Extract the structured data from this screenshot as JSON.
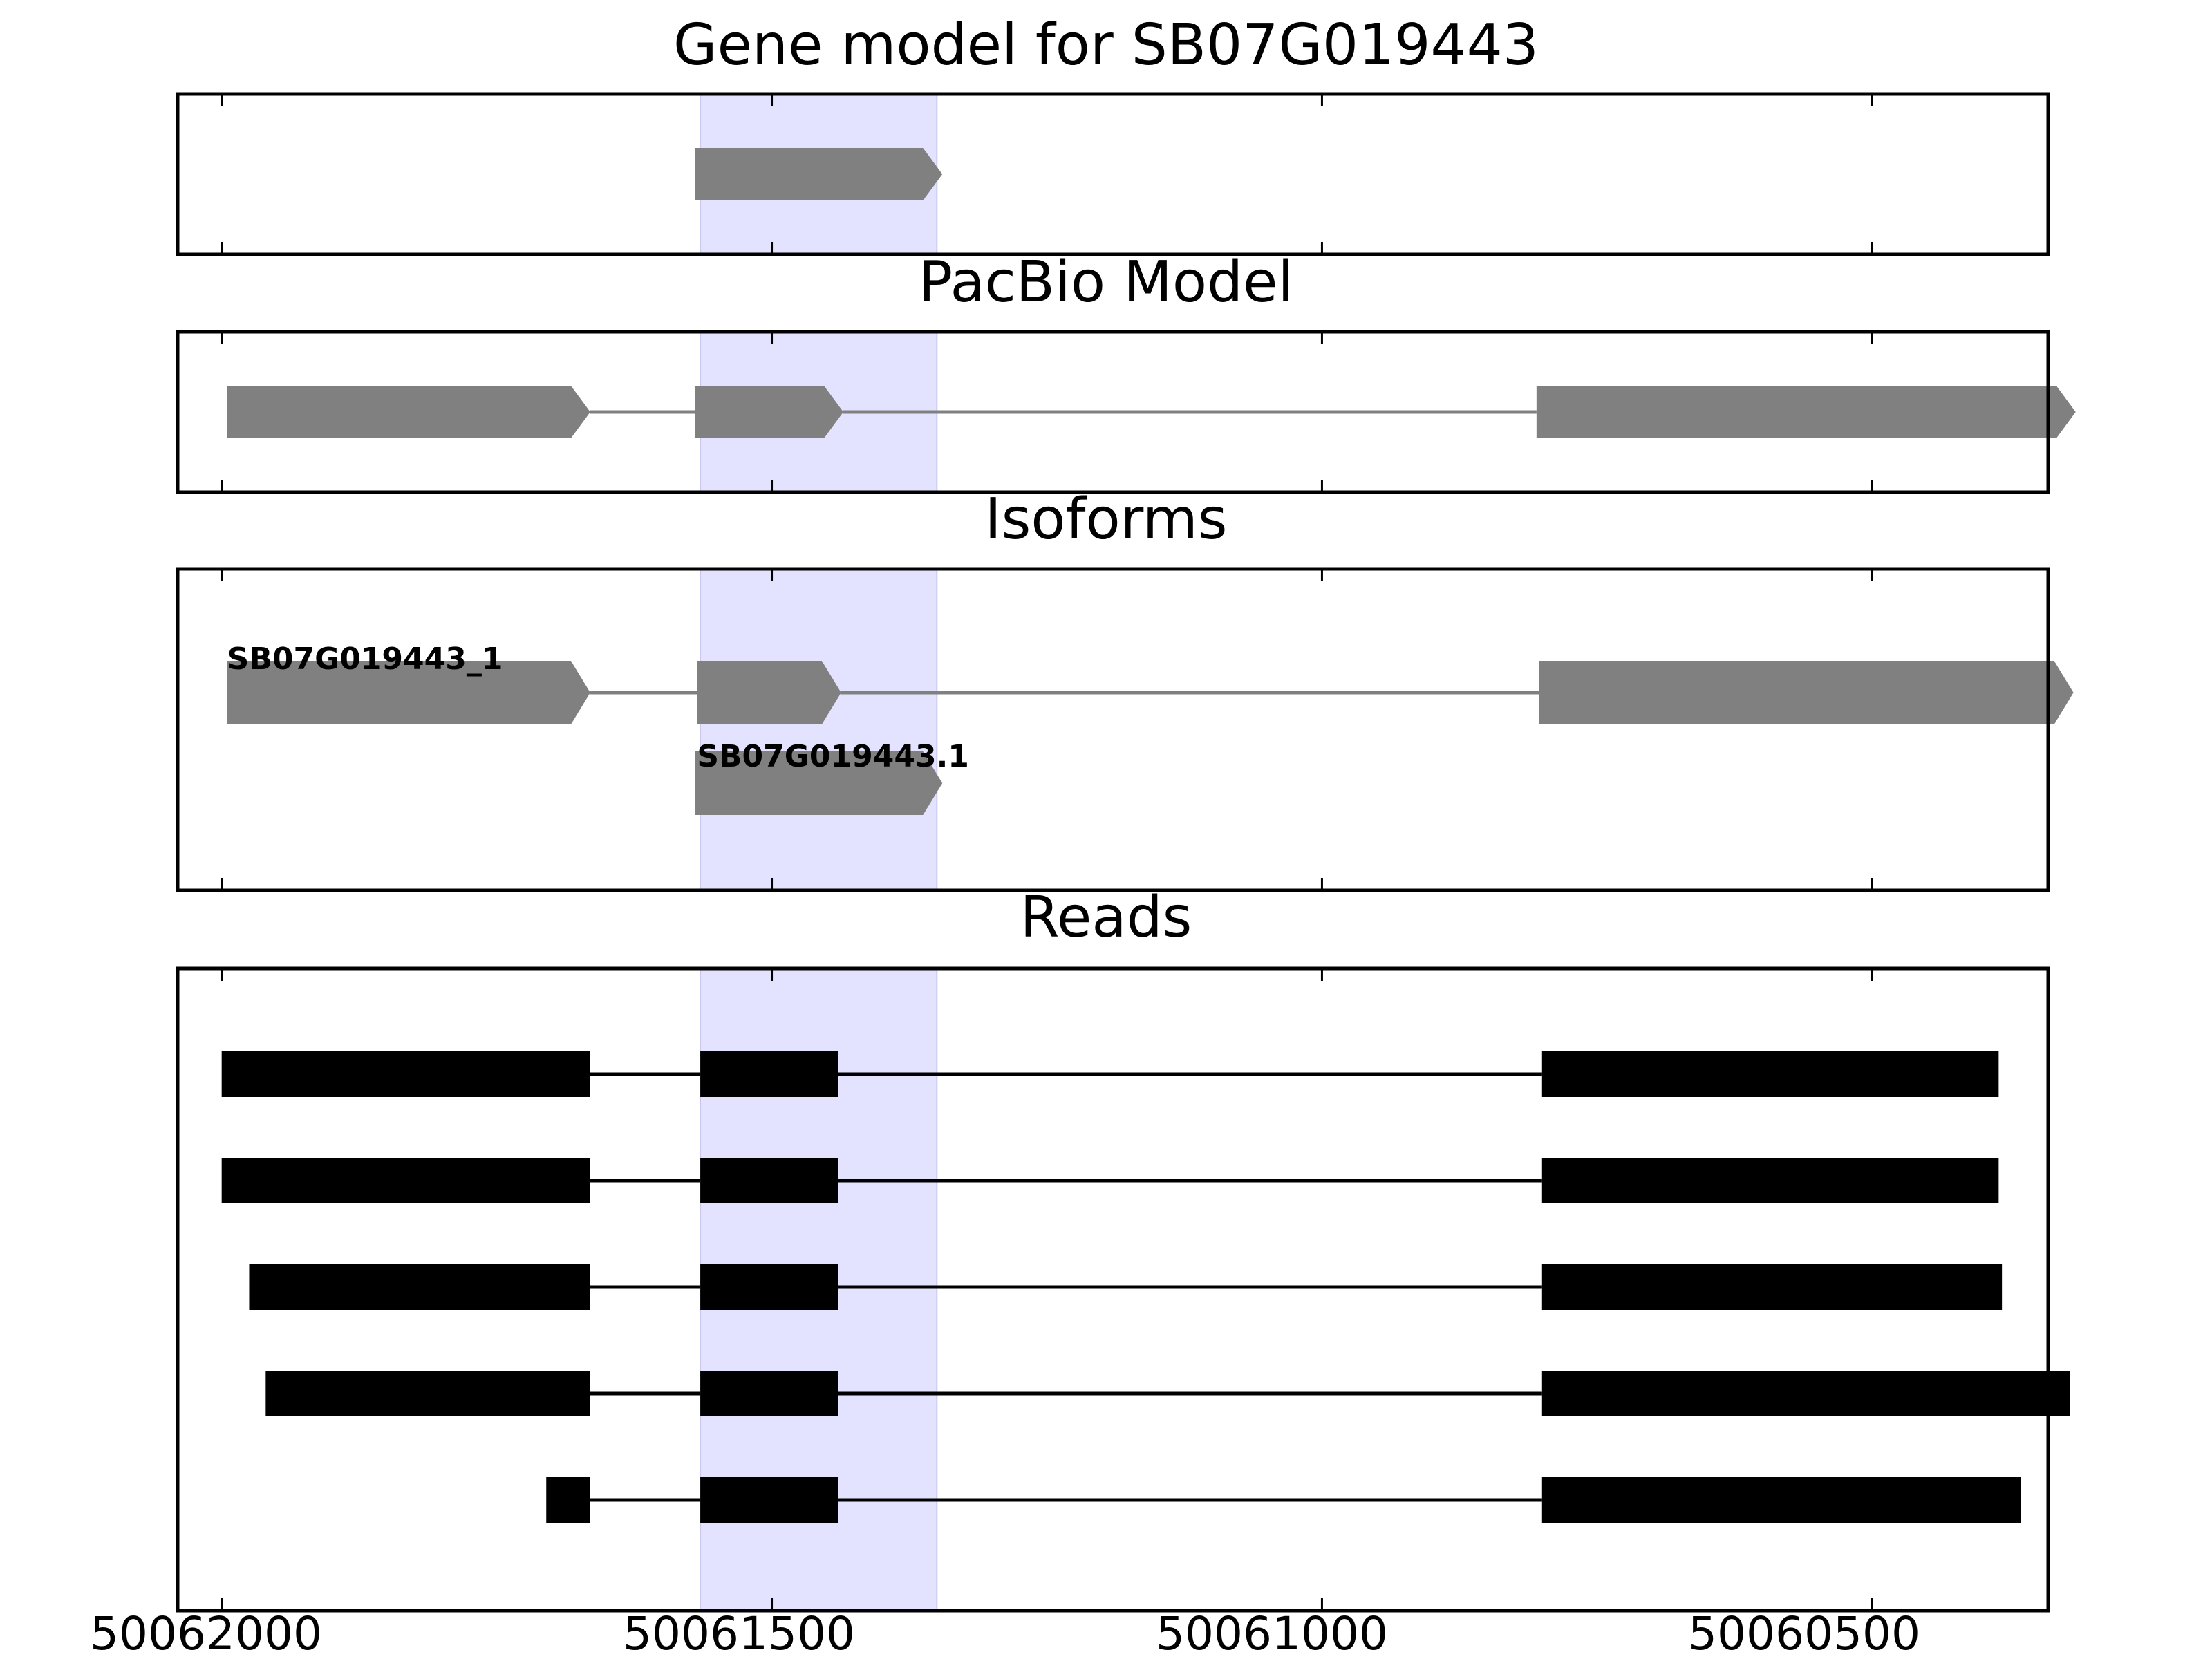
{
  "chart_data": {
    "type": "gene_model_tracks",
    "x_axis": {
      "range": [
        50062040,
        50060340
      ],
      "ticks": [
        50062000,
        50061500,
        50061000,
        50060500
      ],
      "tick_labels": [
        "50062000",
        "50061500",
        "50061000",
        "50060500"
      ],
      "direction": "decreasing"
    },
    "highlight": {
      "start": 50061565,
      "end": 50061350,
      "color": "#e3e3ff"
    },
    "colors": {
      "gene": "#808080",
      "read": "#000000",
      "frame": "#000000"
    },
    "panels": [
      {
        "id": "gene-model",
        "title": "Gene model for SB07G019443",
        "features": [
          {
            "type": "exon",
            "start": 50061570,
            "end": 50061345,
            "arrow": true,
            "row": 0
          }
        ]
      },
      {
        "id": "pacbio-model",
        "title": "PacBio Model",
        "features": [
          {
            "type": "exon",
            "start": 50061995,
            "end": 50061665,
            "arrow": true,
            "row": 0
          },
          {
            "type": "intron",
            "start": 50061665,
            "end": 50061570,
            "row": 0
          },
          {
            "type": "exon",
            "start": 50061570,
            "end": 50061435,
            "arrow": true,
            "row": 0
          },
          {
            "type": "intron",
            "start": 50061435,
            "end": 50060805,
            "row": 0
          },
          {
            "type": "exon",
            "start": 50060805,
            "end": 50060315,
            "arrow": true,
            "row": 0
          }
        ]
      },
      {
        "id": "isoforms",
        "title": "Isoforms",
        "isoforms": [
          {
            "label": "SB07G019443_1",
            "label_x": 50061995,
            "row": 0,
            "features": [
              {
                "type": "exon",
                "start": 50061995,
                "end": 50061665,
                "arrow": true
              },
              {
                "type": "intron",
                "start": 50061665,
                "end": 50061568
              },
              {
                "type": "exon",
                "start": 50061568,
                "end": 50061437,
                "arrow": true
              },
              {
                "type": "intron",
                "start": 50061437,
                "end": 50060803
              },
              {
                "type": "exon",
                "start": 50060803,
                "end": 50060317,
                "arrow": true
              }
            ]
          },
          {
            "label": "SB07G019443.1",
            "label_x": 50061568,
            "row": 1,
            "features": [
              {
                "type": "exon",
                "start": 50061570,
                "end": 50061345,
                "arrow": true
              }
            ]
          }
        ]
      },
      {
        "id": "reads",
        "title": "Reads",
        "reads": [
          {
            "exons": [
              [
                50062000,
                50061665
              ],
              [
                50061565,
                50061440
              ],
              [
                50060800,
                50060385
              ]
            ]
          },
          {
            "exons": [
              [
                50062000,
                50061665
              ],
              [
                50061565,
                50061440
              ],
              [
                50060800,
                50060385
              ]
            ]
          },
          {
            "exons": [
              [
                50061975,
                50061665
              ],
              [
                50061565,
                50061440
              ],
              [
                50060800,
                50060382
              ]
            ]
          },
          {
            "exons": [
              [
                50061960,
                50061665
              ],
              [
                50061565,
                50061440
              ],
              [
                50060800,
                50060320
              ]
            ]
          },
          {
            "exons": [
              [
                50061705,
                50061665
              ],
              [
                50061565,
                50061440
              ],
              [
                50060800,
                50060365
              ]
            ]
          }
        ]
      }
    ]
  }
}
